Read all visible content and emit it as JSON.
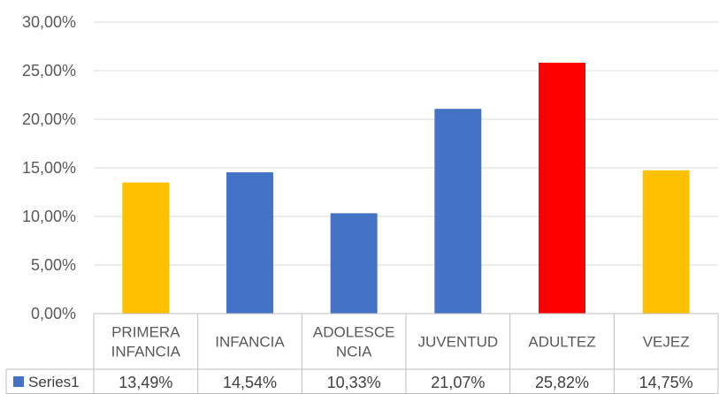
{
  "chart_data": {
    "type": "bar",
    "categories": [
      [
        "PRIMERA",
        "INFANCIA"
      ],
      [
        "INFANCIA"
      ],
      [
        "ADOLESCE",
        "NCIA"
      ],
      [
        "JUVENTUD"
      ],
      [
        "ADULTEZ"
      ],
      [
        "VEJEZ"
      ]
    ],
    "series": [
      {
        "name": "Series1",
        "values": [
          13.49,
          14.54,
          10.33,
          21.07,
          25.82,
          14.75
        ],
        "value_labels": [
          "13,49%",
          "14,54%",
          "10,33%",
          "21,07%",
          "25,82%",
          "14,75%"
        ],
        "colors": [
          "#FFC000",
          "#4472C4",
          "#4472C4",
          "#4472C4",
          "#FF0000",
          "#FFC000"
        ]
      }
    ],
    "ylim": [
      0,
      30
    ],
    "yticks": [
      0,
      5,
      10,
      15,
      20,
      25,
      30
    ],
    "ytick_labels": [
      "0,00%",
      "5,00%",
      "10,00%",
      "15,00%",
      "20,00%",
      "25,00%",
      "30,00%"
    ],
    "legend_color": "#4472C4",
    "grid": true,
    "data_table": true,
    "legend_placement": "data-table"
  }
}
